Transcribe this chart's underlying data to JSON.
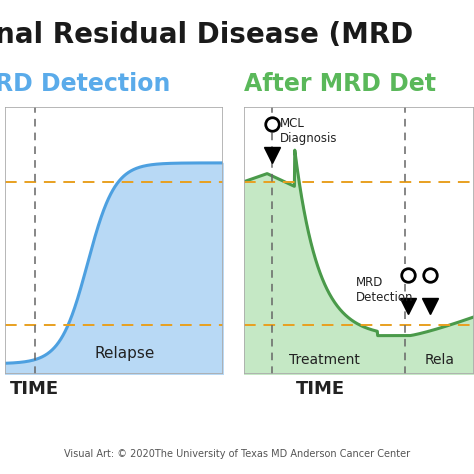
{
  "title_text": "nal Residual Disease (MRD",
  "title_color": "#1a1a1a",
  "title_fontsize": 20,
  "left_subtitle": "RD Detection",
  "left_subtitle_color": "#5aabea",
  "right_subtitle": "After MRD Det",
  "right_subtitle_color": "#5ab85a",
  "subtitle_fontsize": 17,
  "blue_fill_color": "#b8d9f5",
  "blue_line_color": "#4da0e0",
  "green_fill_color": "#c5e8c5",
  "green_line_color": "#4a9a4a",
  "orange_dashed_color": "#e8a020",
  "relapse_label": "Relapse",
  "treatment_label": "Treatment",
  "relapse2_label": "Rela",
  "time_label": "TIME",
  "mcl_label": "MCL\nDiagnosis",
  "mrd_label": "MRD\nDetection",
  "footnote": "Visual Art: © 2020The University of Texas MD Anderson Cancer Center",
  "footnote_fontsize": 7,
  "background_color": "#ffffff",
  "border_color": "#aaaaaa",
  "vline_color": "#666666",
  "label_color": "#222222"
}
